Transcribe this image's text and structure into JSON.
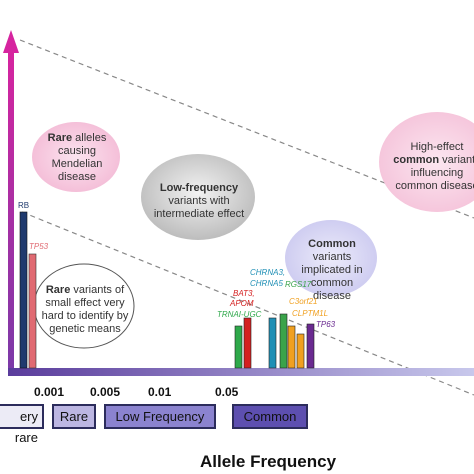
{
  "axis": {
    "x_title": "Allele Frequency"
  },
  "x_ticks": [
    "0.001",
    "0.005",
    "0.01",
    "0.05"
  ],
  "categories": [
    "ery rare",
    "Rare",
    "Low Frequency",
    "Common"
  ],
  "bubbles": {
    "rare_mendelian": {
      "bold": "Rare",
      "rest": " alleles causing Mendelian disease"
    },
    "low_frequency": {
      "bold": "Low-frequency",
      "rest": " variants with intermediate effect"
    },
    "common_variants": {
      "bold": "Common",
      "rest": " variants implicated in common disease"
    },
    "high_effect": {
      "pre": "High-effect ",
      "bold": "common",
      "rest": " variants influencing common disease"
    },
    "rare_small": {
      "bold": "Rare",
      "rest": " variants of small effect very hard to identify by genetic means"
    }
  },
  "genes": {
    "rb": "RB",
    "tp53": "TP53",
    "bat3": "BAT3,",
    "apom": "APOM",
    "trna": "TRNAI-UGC",
    "chrna3": "CHRNA3,",
    "chrna5": "CHRNA5",
    "rgs17": "RGS17",
    "c3orf21": "C3orf21",
    "cliptm1l": "CLPTM1L",
    "tp63": "TP63"
  },
  "colors": {
    "axis_top": "#d6249f",
    "axis_bottom": "#6a3aa3",
    "rb": "#1f3a6e",
    "tp53": "#e06a72",
    "bat3": "#d42020",
    "trna": "#2ea84a",
    "chrna": "#1f8fb5",
    "rgs17": "#3aa34a",
    "orange": "#f0a020",
    "tp63": "#6a2a90"
  }
}
